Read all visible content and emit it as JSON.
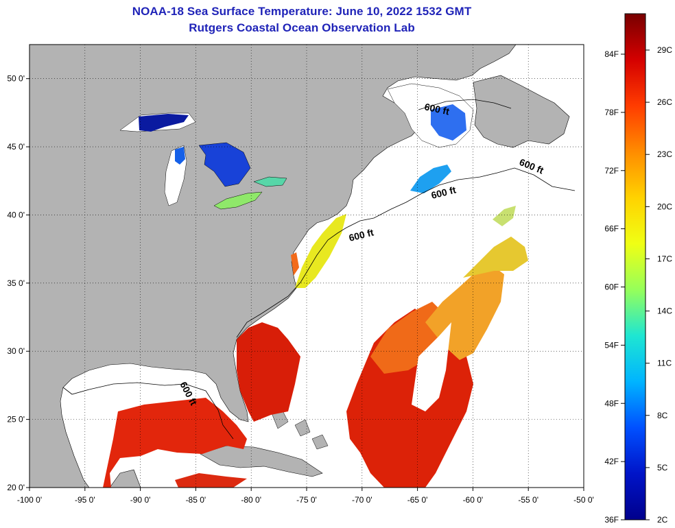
{
  "title": {
    "line1": "NOAA-18 Sea Surface Temperature:  June 10, 2022 1532 GMT",
    "line2": "Rutgers Coastal Ocean Observation Lab"
  },
  "map": {
    "lon_range": [
      -100,
      -50
    ],
    "lat_range": [
      20,
      52.5
    ],
    "grid": "dotted",
    "land_color": "#b3b3b3",
    "no_data_color": "#ffffff",
    "x_ticks": [
      {
        "value": -100,
        "label": "-100 0'"
      },
      {
        "value": -95,
        "label": "-95 0'"
      },
      {
        "value": -90,
        "label": "-90 0'"
      },
      {
        "value": -85,
        "label": "-85 0'"
      },
      {
        "value": -80,
        "label": "-80 0'"
      },
      {
        "value": -75,
        "label": "-75 0'"
      },
      {
        "value": -70,
        "label": "-70 0'"
      },
      {
        "value": -65,
        "label": "-65 0'"
      },
      {
        "value": -60,
        "label": "-60 0'"
      },
      {
        "value": -55,
        "label": "-55 0'"
      },
      {
        "value": -50,
        "label": "-50 0'"
      }
    ],
    "y_ticks": [
      {
        "value": 50,
        "label": "50 0'"
      },
      {
        "value": 45,
        "label": "45 0'"
      },
      {
        "value": 40,
        "label": "40 0'"
      },
      {
        "value": 35,
        "label": "35 0'"
      },
      {
        "value": 30,
        "label": "30 0'"
      },
      {
        "value": 25,
        "label": "25 0'"
      },
      {
        "value": 20,
        "label": "20 0'"
      }
    ],
    "contour_label": "600 ft"
  },
  "colorbar": {
    "celsius_labels": [
      "29C",
      "26C",
      "23C",
      "20C",
      "17C",
      "14C",
      "11C",
      "8C",
      "5C",
      "2C"
    ],
    "fahrenheit_labels": [
      "84F",
      "78F",
      "72F",
      "66F",
      "60F",
      "54F",
      "48F",
      "42F",
      "36F"
    ],
    "colors": [
      "#780000",
      "#d40000",
      "#ff3c00",
      "#ff8c00",
      "#ffd200",
      "#f0ff14",
      "#96ff5a",
      "#1ee6d2",
      "#00b4ff",
      "#0050ff",
      "#0014c8",
      "#00008c"
    ]
  }
}
